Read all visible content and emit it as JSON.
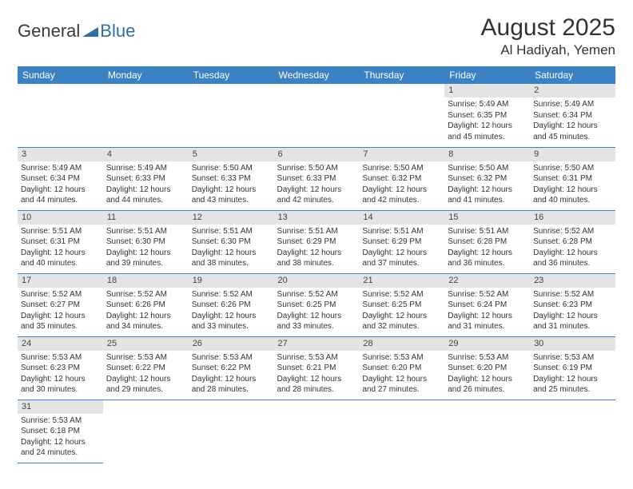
{
  "logo": {
    "text1": "General",
    "text2": "Blue",
    "color1": "#3a3a3a",
    "color2": "#2f6fa8",
    "triangle_color": "#2f6fa8"
  },
  "title": "August 2025",
  "location": "Al Hadiyah, Yemen",
  "colors": {
    "header_bg": "#3b82c4",
    "header_text": "#ffffff",
    "daynum_bg": "#e4e4e4",
    "row_divider": "#3b82c4",
    "text": "#333333"
  },
  "fonts": {
    "title_size": 30,
    "location_size": 17,
    "weekday_size": 12,
    "daynum_size": 11,
    "body_size": 10
  },
  "weekdays": [
    "Sunday",
    "Monday",
    "Tuesday",
    "Wednesday",
    "Thursday",
    "Friday",
    "Saturday"
  ],
  "leading_blanks": 5,
  "days": [
    {
      "n": "1",
      "sunrise": "5:49 AM",
      "sunset": "6:35 PM",
      "dl_h": "12",
      "dl_m": "45"
    },
    {
      "n": "2",
      "sunrise": "5:49 AM",
      "sunset": "6:34 PM",
      "dl_h": "12",
      "dl_m": "45"
    },
    {
      "n": "3",
      "sunrise": "5:49 AM",
      "sunset": "6:34 PM",
      "dl_h": "12",
      "dl_m": "44"
    },
    {
      "n": "4",
      "sunrise": "5:49 AM",
      "sunset": "6:33 PM",
      "dl_h": "12",
      "dl_m": "44"
    },
    {
      "n": "5",
      "sunrise": "5:50 AM",
      "sunset": "6:33 PM",
      "dl_h": "12",
      "dl_m": "43"
    },
    {
      "n": "6",
      "sunrise": "5:50 AM",
      "sunset": "6:33 PM",
      "dl_h": "12",
      "dl_m": "42"
    },
    {
      "n": "7",
      "sunrise": "5:50 AM",
      "sunset": "6:32 PM",
      "dl_h": "12",
      "dl_m": "42"
    },
    {
      "n": "8",
      "sunrise": "5:50 AM",
      "sunset": "6:32 PM",
      "dl_h": "12",
      "dl_m": "41"
    },
    {
      "n": "9",
      "sunrise": "5:50 AM",
      "sunset": "6:31 PM",
      "dl_h": "12",
      "dl_m": "40"
    },
    {
      "n": "10",
      "sunrise": "5:51 AM",
      "sunset": "6:31 PM",
      "dl_h": "12",
      "dl_m": "40"
    },
    {
      "n": "11",
      "sunrise": "5:51 AM",
      "sunset": "6:30 PM",
      "dl_h": "12",
      "dl_m": "39"
    },
    {
      "n": "12",
      "sunrise": "5:51 AM",
      "sunset": "6:30 PM",
      "dl_h": "12",
      "dl_m": "38"
    },
    {
      "n": "13",
      "sunrise": "5:51 AM",
      "sunset": "6:29 PM",
      "dl_h": "12",
      "dl_m": "38"
    },
    {
      "n": "14",
      "sunrise": "5:51 AM",
      "sunset": "6:29 PM",
      "dl_h": "12",
      "dl_m": "37"
    },
    {
      "n": "15",
      "sunrise": "5:51 AM",
      "sunset": "6:28 PM",
      "dl_h": "12",
      "dl_m": "36"
    },
    {
      "n": "16",
      "sunrise": "5:52 AM",
      "sunset": "6:28 PM",
      "dl_h": "12",
      "dl_m": "36"
    },
    {
      "n": "17",
      "sunrise": "5:52 AM",
      "sunset": "6:27 PM",
      "dl_h": "12",
      "dl_m": "35"
    },
    {
      "n": "18",
      "sunrise": "5:52 AM",
      "sunset": "6:26 PM",
      "dl_h": "12",
      "dl_m": "34"
    },
    {
      "n": "19",
      "sunrise": "5:52 AM",
      "sunset": "6:26 PM",
      "dl_h": "12",
      "dl_m": "33"
    },
    {
      "n": "20",
      "sunrise": "5:52 AM",
      "sunset": "6:25 PM",
      "dl_h": "12",
      "dl_m": "33"
    },
    {
      "n": "21",
      "sunrise": "5:52 AM",
      "sunset": "6:25 PM",
      "dl_h": "12",
      "dl_m": "32"
    },
    {
      "n": "22",
      "sunrise": "5:52 AM",
      "sunset": "6:24 PM",
      "dl_h": "12",
      "dl_m": "31"
    },
    {
      "n": "23",
      "sunrise": "5:52 AM",
      "sunset": "6:23 PM",
      "dl_h": "12",
      "dl_m": "31"
    },
    {
      "n": "24",
      "sunrise": "5:53 AM",
      "sunset": "6:23 PM",
      "dl_h": "12",
      "dl_m": "30"
    },
    {
      "n": "25",
      "sunrise": "5:53 AM",
      "sunset": "6:22 PM",
      "dl_h": "12",
      "dl_m": "29"
    },
    {
      "n": "26",
      "sunrise": "5:53 AM",
      "sunset": "6:22 PM",
      "dl_h": "12",
      "dl_m": "28"
    },
    {
      "n": "27",
      "sunrise": "5:53 AM",
      "sunset": "6:21 PM",
      "dl_h": "12",
      "dl_m": "28"
    },
    {
      "n": "28",
      "sunrise": "5:53 AM",
      "sunset": "6:20 PM",
      "dl_h": "12",
      "dl_m": "27"
    },
    {
      "n": "29",
      "sunrise": "5:53 AM",
      "sunset": "6:20 PM",
      "dl_h": "12",
      "dl_m": "26"
    },
    {
      "n": "30",
      "sunrise": "5:53 AM",
      "sunset": "6:19 PM",
      "dl_h": "12",
      "dl_m": "25"
    },
    {
      "n": "31",
      "sunrise": "5:53 AM",
      "sunset": "6:18 PM",
      "dl_h": "12",
      "dl_m": "24"
    }
  ],
  "labels": {
    "sunrise": "Sunrise: ",
    "sunset": "Sunset: ",
    "daylight_prefix": "Daylight: ",
    "hours_word": " hours",
    "and_word": "and ",
    "minutes_word": " minutes."
  }
}
